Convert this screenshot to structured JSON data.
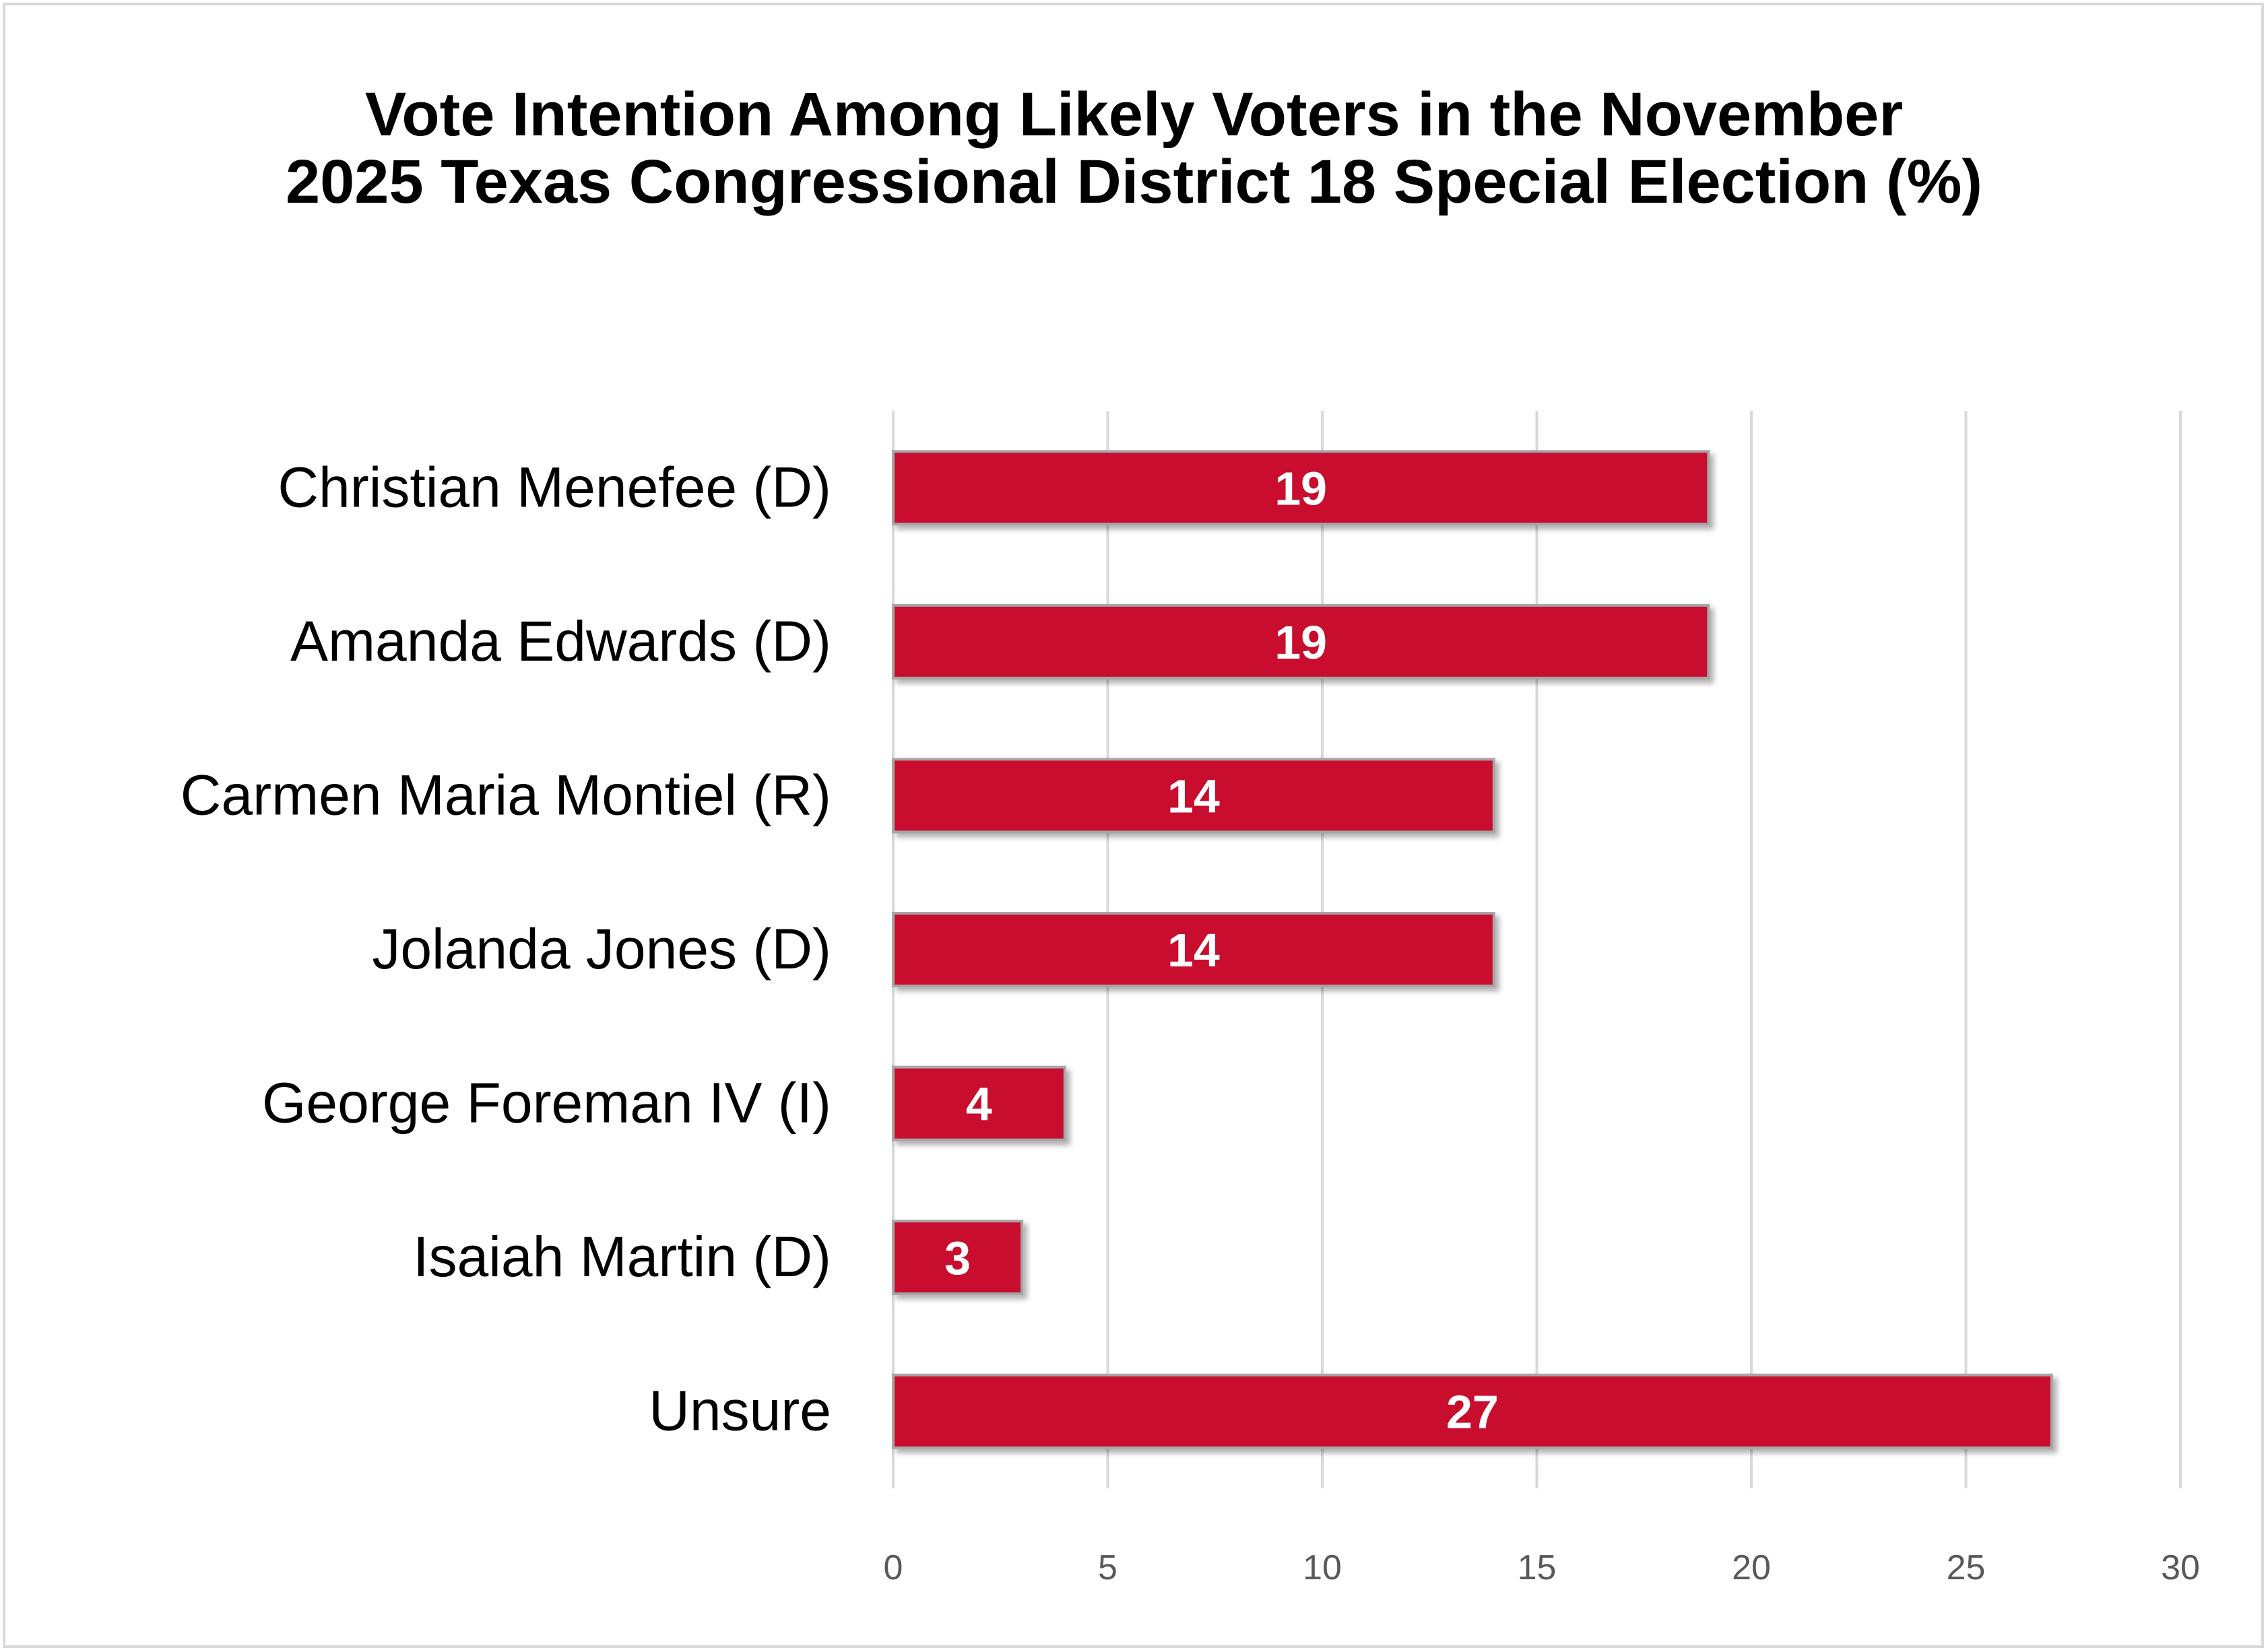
{
  "chart_data": {
    "type": "bar",
    "orientation": "horizontal",
    "title": "Vote Intention Among Likely Voters in the November 2025 Texas Congressional District 18 Special Election (%)",
    "title_lines": [
      "Vote Intention Among Likely Voters in the November",
      "2025 Texas Congressional District 18 Special Election (%)"
    ],
    "categories": [
      "Christian Menefee (D)",
      "Amanda Edwards (D)",
      "Carmen Maria Montiel (R)",
      "Jolanda Jones (D)",
      "George Foreman IV (I)",
      "Isaiah Martin (D)",
      "Unsure"
    ],
    "values": [
      19,
      19,
      14,
      14,
      4,
      3,
      27
    ],
    "data_labels": [
      "19",
      "19",
      "14",
      "14",
      "4",
      "3",
      "27"
    ],
    "xlim": [
      0,
      30
    ],
    "x_ticks": [
      0,
      5,
      10,
      15,
      20,
      25,
      30
    ],
    "xlabel": "",
    "ylabel": "",
    "grid": true,
    "legend": "none",
    "colors": {
      "bar": "#c8102e",
      "bar_edge": "#a6a6a6",
      "grid": "#d9d9d9",
      "tick_text": "#595959"
    }
  }
}
